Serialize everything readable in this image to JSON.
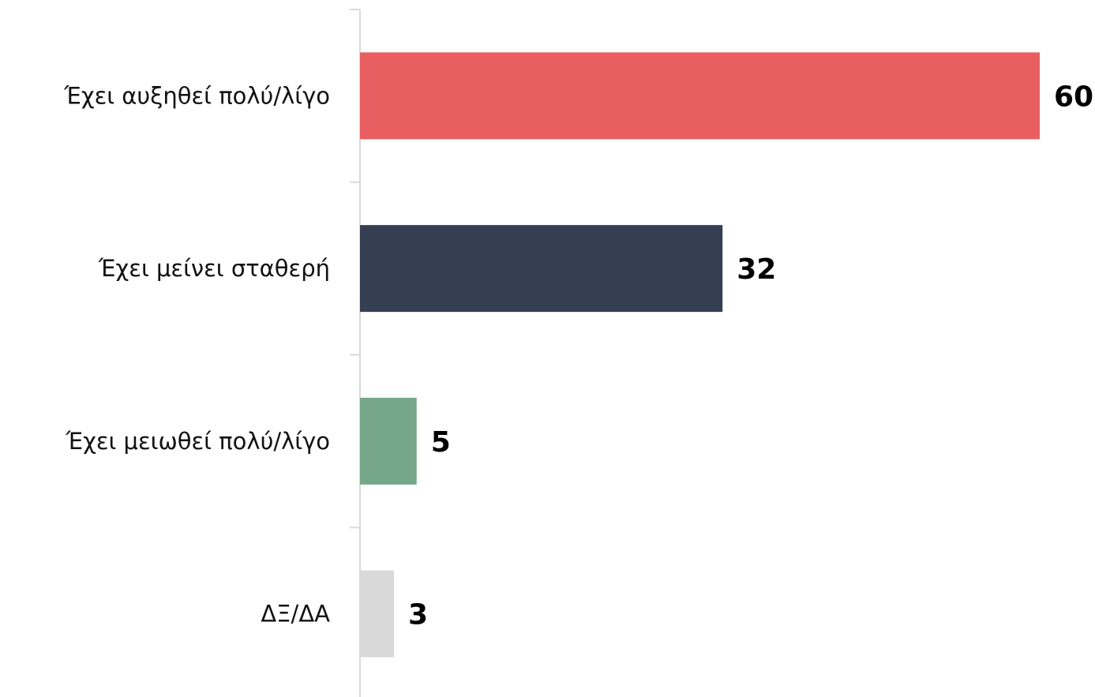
{
  "chart_data": {
    "type": "hbar",
    "categories": [
      "Έχει αυξηθεί πολύ/λίγο",
      "Έχει μείνει σταθερή",
      "Έχει μειωθεί πολύ/λίγο",
      "ΔΞ/ΔΑ"
    ],
    "values": [
      60,
      32,
      5,
      3
    ],
    "colors": [
      "#e85e61",
      "#343f51",
      "#76a788",
      "#d9d9d9"
    ]
  }
}
